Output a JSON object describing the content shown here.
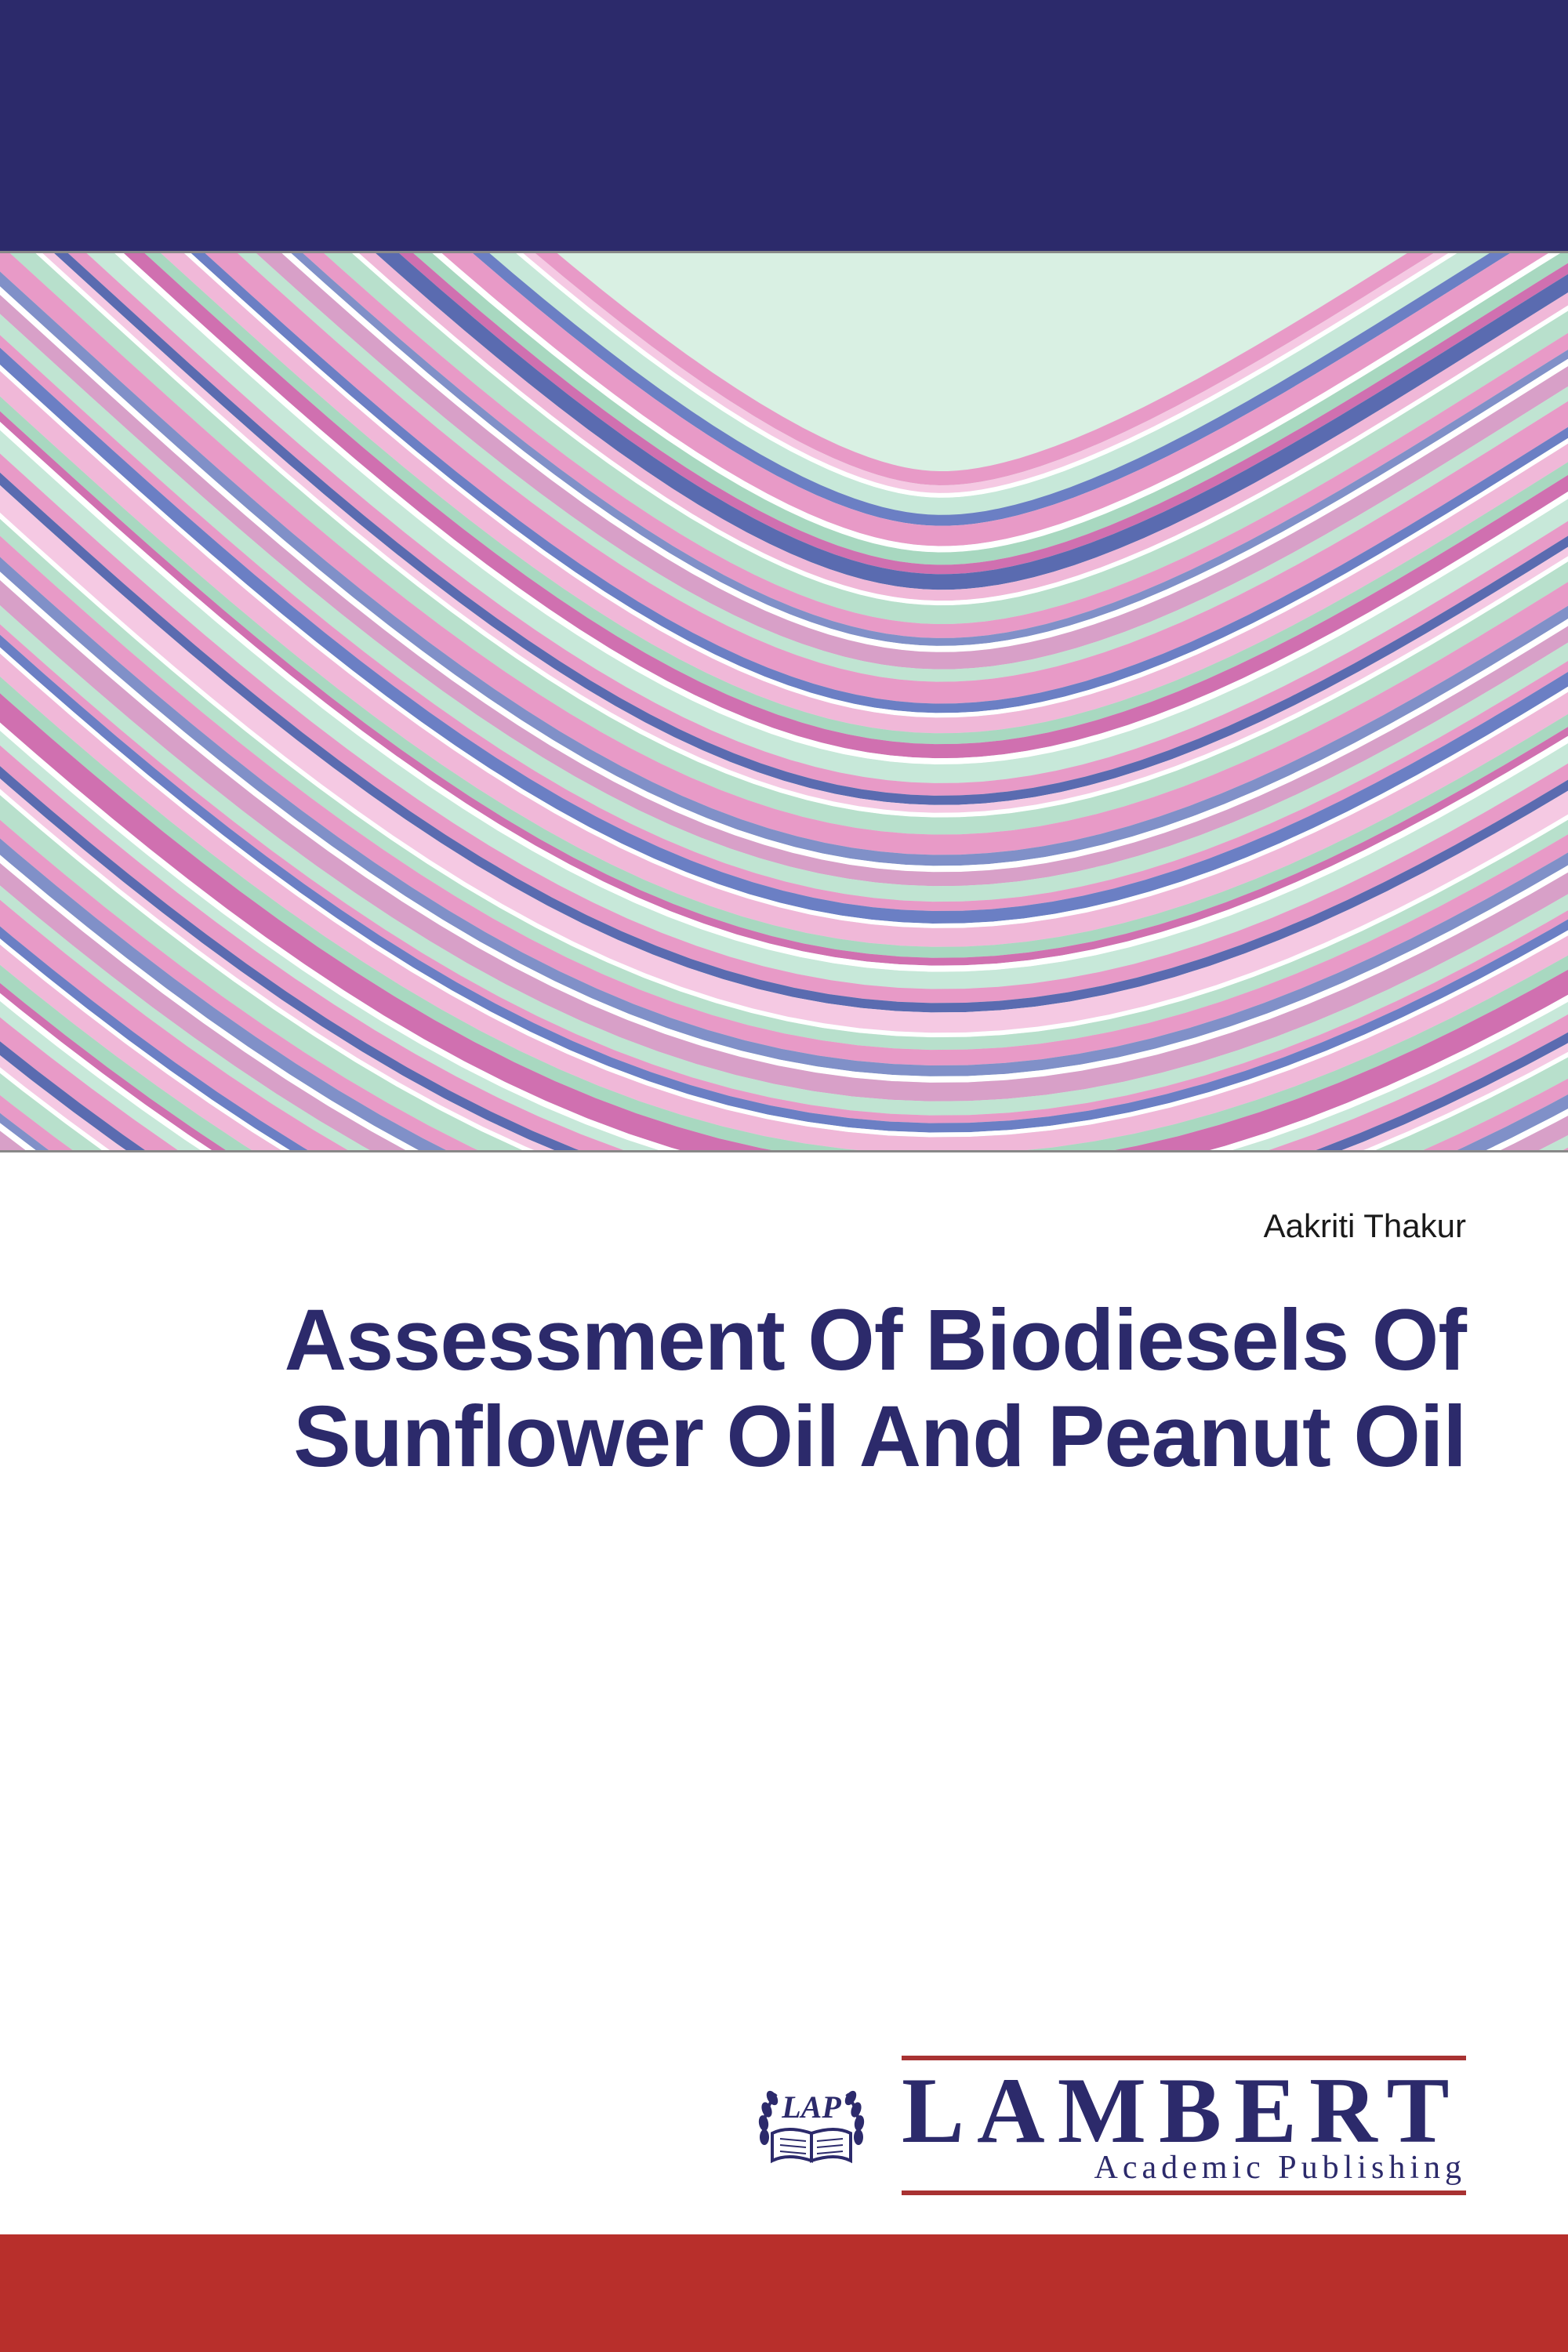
{
  "layout": {
    "top_band_height": 320,
    "top_band_color": "#2c2a6b",
    "bottom_band_height": 150,
    "bottom_band_color": "#b82f2b",
    "wave_height": 1150,
    "page_bg": "#ffffff"
  },
  "author": "Aakriti Thakur",
  "title": "Assessment Of Biodiesels Of Sunflower Oil And Peanut Oil",
  "title_color": "#2c2a6b",
  "title_fontsize": 110,
  "author_fontsize": 42,
  "publisher": {
    "logo_badge_text": "LAP",
    "name": "LAMBERT",
    "subtitle": "Academic Publishing",
    "line_color": "#a83232",
    "text_color": "#2c2a6b"
  },
  "wave_art": {
    "background": "#d9f0e3",
    "stripe_colors": [
      "#e89ac7",
      "#f5c9e3",
      "#ffffff",
      "#c7e8d9",
      "#6b7fc4",
      "#e89ac7",
      "#ffffff",
      "#a8d8c0",
      "#d070b0",
      "#5a6bb0",
      "#f0b8d8",
      "#ffffff",
      "#b8e0cc",
      "#e89ac7",
      "#8090c8",
      "#ffffff",
      "#d8a0c8",
      "#c0e4d2",
      "#e89ac7",
      "#6b7fc4",
      "#ffffff",
      "#f0b8d8",
      "#a8d8c0",
      "#d070b0",
      "#ffffff",
      "#c7e8d9",
      "#e89ac7",
      "#5a6bb0",
      "#f5c9e3",
      "#ffffff",
      "#b8e0cc",
      "#e89ac7",
      "#8090c8",
      "#ffffff",
      "#d8a0c8",
      "#c0e4d2",
      "#e89ac7",
      "#6b7fc4",
      "#ffffff",
      "#f0b8d8",
      "#a8d8c0",
      "#d070b0",
      "#ffffff",
      "#c7e8d9",
      "#e89ac7",
      "#5a6bb0",
      "#f5c9e3",
      "#ffffff",
      "#b8e0cc",
      "#e89ac7",
      "#8090c8",
      "#ffffff",
      "#d8a0c8",
      "#c0e4d2",
      "#e89ac7",
      "#6b7fc4",
      "#ffffff",
      "#f0b8d8",
      "#a8d8c0",
      "#d070b0",
      "#ffffff",
      "#c7e8d9",
      "#e89ac7",
      "#5a6bb0",
      "#f5c9e3",
      "#ffffff",
      "#b8e0cc",
      "#e89ac7",
      "#8090c8",
      "#ffffff",
      "#d8a0c8",
      "#c0e4d2",
      "#e89ac7",
      "#6b7fc4",
      "#ffffff",
      "#f0b8d8",
      "#a8d8c0",
      "#d070b0",
      "#ffffff",
      "#c7e8d9",
      "#e89ac7",
      "#5a6bb0",
      "#f5c9e3",
      "#ffffff",
      "#b8e0cc",
      "#e89ac7",
      "#8090c8",
      "#ffffff",
      "#d8a0c8",
      "#c0e4d2"
    ],
    "stripe_widths": [
      18,
      10,
      6,
      22,
      14,
      26,
      8,
      16,
      12,
      20,
      14,
      6,
      24,
      18,
      10,
      8,
      22,
      16,
      28,
      12,
      6,
      20,
      14,
      18,
      8,
      24,
      16,
      12,
      10,
      6,
      22,
      26,
      14,
      8,
      18,
      20,
      12,
      16,
      6,
      24,
      14,
      10,
      8,
      22,
      18,
      12,
      26,
      6,
      16,
      20,
      14,
      8,
      24,
      18,
      10,
      12,
      6,
      22,
      16,
      28,
      8,
      14,
      20,
      12,
      10,
      6,
      24,
      18,
      16,
      8,
      22,
      14,
      26,
      12,
      6,
      20,
      18,
      10,
      8,
      16,
      24,
      14,
      12,
      6,
      22,
      18,
      10,
      8,
      20,
      16
    ]
  }
}
